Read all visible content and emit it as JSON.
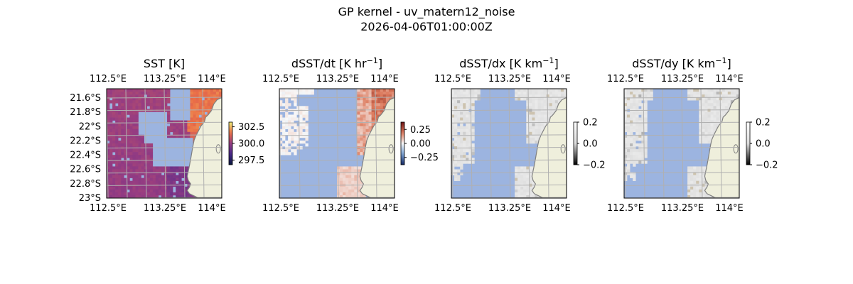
{
  "figure": {
    "title": "GP kernel - uv_matern12_noise",
    "subtitle": "2026-04-06T01:00:00Z",
    "colors": {
      "ocean": "#9cb4e0",
      "land": "#efefdc",
      "coast": "#808080",
      "grid": "#b0b0b0"
    }
  },
  "chart_data": [
    {
      "type": "heatmap",
      "title_base": "SST [K]",
      "title_unit": "",
      "title_sup": "",
      "x_ticks_top": [
        "112.5°E",
        "113.25°E",
        "114°E"
      ],
      "x_ticks_bottom": [
        "112.5°E",
        "113.25°E",
        "114°E"
      ],
      "y_ticks": [
        "21.6°S",
        "21.8°S",
        "22°S",
        "22.2°S",
        "22.4°S",
        "22.6°S",
        "22.8°S",
        "23°S"
      ],
      "colorbar": {
        "ticks": [
          "302.5",
          "300.0",
          "297.5"
        ],
        "tick_values": [
          302.5,
          300.0,
          297.5
        ],
        "range": [
          296.8,
          303.2
        ],
        "cmap": "thermal"
      }
    },
    {
      "type": "heatmap",
      "title_base": "dSST/dt [K hr",
      "title_unit": "",
      "title_sup": "−1",
      "x_ticks_top": [
        "112.5°E",
        "113.25°E",
        "114°E"
      ],
      "x_ticks_bottom": [
        "112.5°E",
        "113.25°E",
        "114°E"
      ],
      "y_ticks": [],
      "colorbar": {
        "ticks": [
          "0.25",
          "0.00",
          "−0.25"
        ],
        "tick_values": [
          0.25,
          0.0,
          -0.25
        ],
        "range": [
          -0.38,
          0.38
        ],
        "cmap": "diverging"
      }
    },
    {
      "type": "heatmap",
      "title_base": "dSST/dx [K km",
      "title_unit": "",
      "title_sup": "−1",
      "x_ticks_top": [
        "112.5°E",
        "113.25°E",
        "114°E"
      ],
      "x_ticks_bottom": [
        "112.5°E",
        "113.25°E",
        "114°E"
      ],
      "y_ticks": [],
      "colorbar": {
        "ticks": [
          "0.2",
          "0.0",
          "−0.2"
        ],
        "tick_values": [
          0.2,
          0.0,
          -0.2
        ],
        "range": [
          -0.2,
          0.2
        ],
        "cmap": "gray"
      }
    },
    {
      "type": "heatmap",
      "title_base": "dSST/dy [K km",
      "title_unit": "",
      "title_sup": "−1",
      "x_ticks_top": [
        "112.5°E",
        "113.25°E",
        "114°E"
      ],
      "x_ticks_bottom": [
        "112.5°E",
        "113.25°E",
        "114°E"
      ],
      "y_ticks": [],
      "colorbar": {
        "ticks": [
          "0.2",
          "0.0",
          "−0.2"
        ],
        "tick_values": [
          0.2,
          0.0,
          -0.2
        ],
        "range": [
          -0.2,
          0.2
        ],
        "cmap": "gray"
      }
    }
  ]
}
